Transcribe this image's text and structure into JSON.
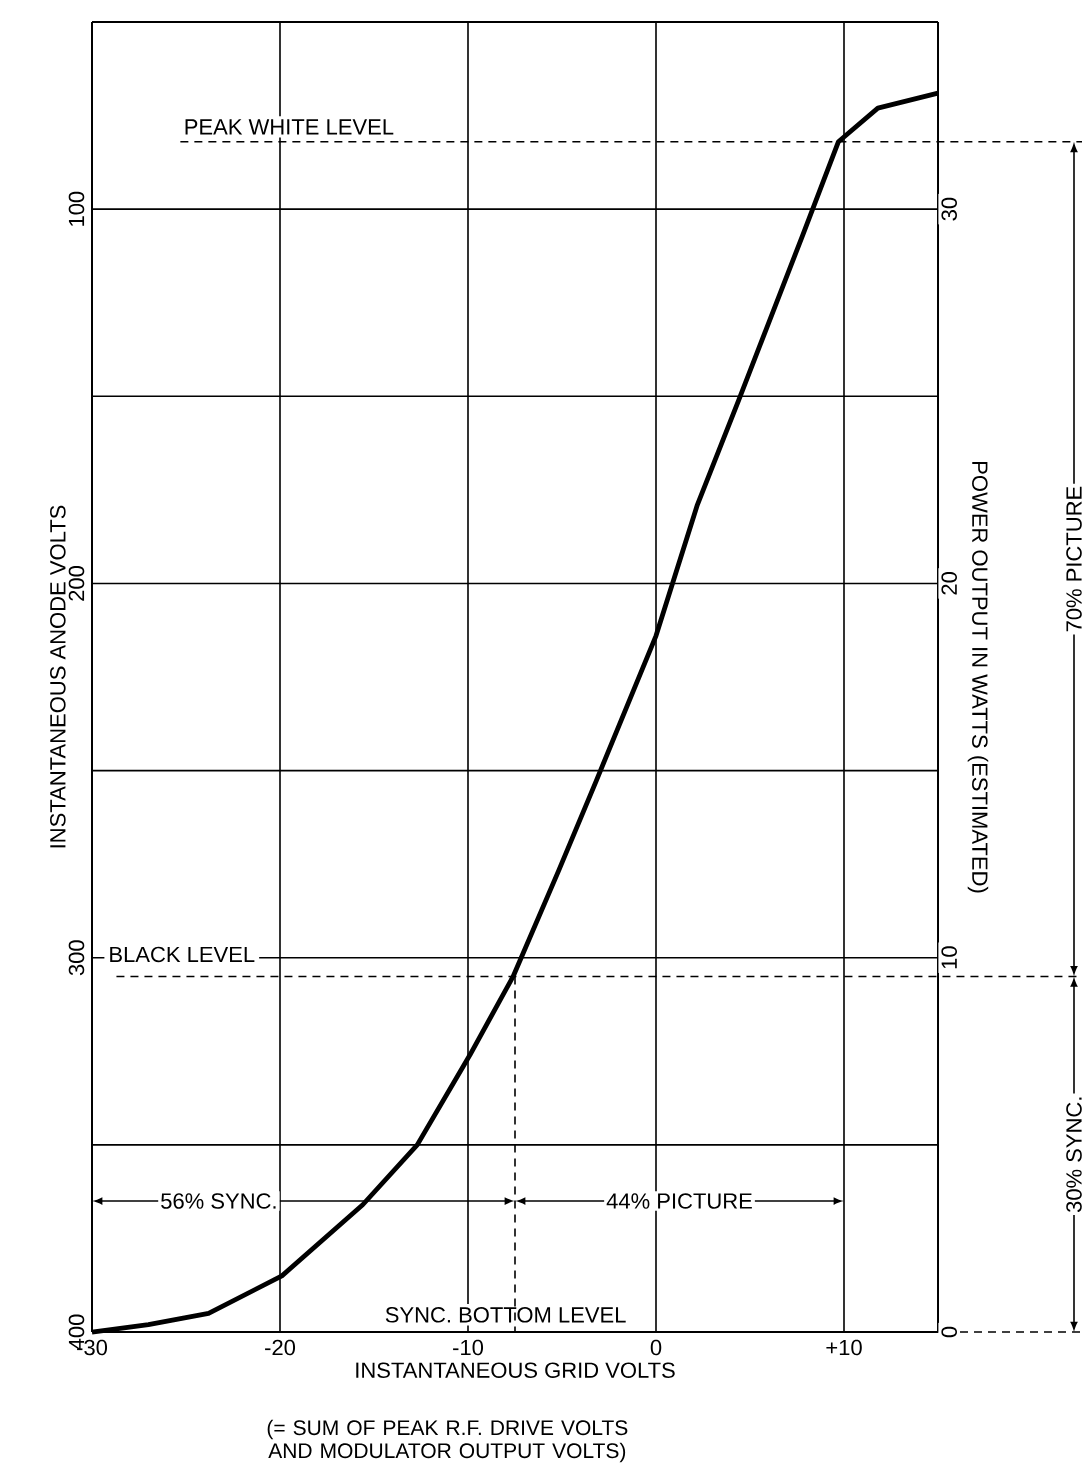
{
  "chart_data": {
    "type": "line",
    "xlabel": "INSTANTANEOUS GRID VOLTS",
    "ylabel": "INSTANTANEOUS ANODE VOLTS",
    "y2label": "POWER OUTPUT IN WATTS (ESTIMATED)",
    "annotations": [
      "56% SYNC.",
      "44% PICTURE",
      "70% PICTURE",
      "30% SYNC.",
      "(= SUM OF PEAK R.F. DRIVE VOLTS AND MODULATOR OUTPUT VOLTS)"
    ],
    "series": [
      {
        "color": "#000000",
        "x": [
          -30,
          -27,
          -23.8,
          -19.9,
          -15.6,
          -12.7,
          -9.9,
          -7.6,
          -5.2,
          -3.2,
          0,
          2.2,
          4.4,
          7.8,
          9.7,
          11.8,
          15
        ],
        "values": [
          400,
          398,
          395,
          385,
          366,
          350,
          326,
          305,
          277,
          253,
          214,
          179,
          151,
          107,
          82,
          73,
          69
        ]
      }
    ],
    "xlim": [
      -30,
      15
    ],
    "xticks": [
      -30,
      -20,
      -10,
      0,
      {
        "value": 10,
        "label": "+10"
      }
    ],
    "ylim": [
      400,
      50
    ],
    "yticks": [
      {
        "value": 50,
        "label": null
      },
      100,
      {
        "value": 150,
        "label": null
      },
      200,
      {
        "value": 250,
        "label": null
      },
      300,
      {
        "value": 350,
        "label": null
      },
      400
    ],
    "y2lim": [
      0,
      35
    ],
    "y2ticks": [
      0,
      10,
      20,
      30
    ],
    "grid": true,
    "ref_lines": [
      {
        "axis": "y",
        "value": 82,
        "label": "PEAK WHITE LEVEL",
        "line_style": "dashed"
      },
      {
        "axis": "y",
        "value": 305,
        "label": "BLACK LEVEL",
        "line_style": "dashed"
      },
      {
        "axis": "y",
        "value": 400,
        "label": "SYNC. BOTTOM LEVEL",
        "line_style": "dashed"
      },
      {
        "axis": "x",
        "value": -7.5,
        "line_style": "dashed"
      }
    ]
  }
}
